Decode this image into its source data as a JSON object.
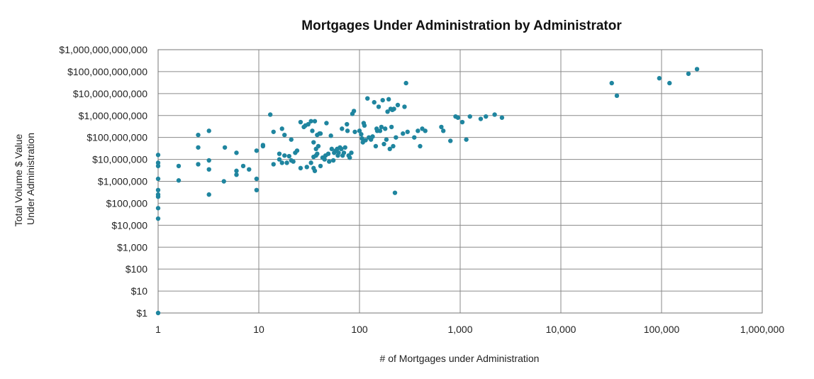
{
  "chart_data": {
    "type": "scatter",
    "title": "Mortgages Under Administration by Administrator",
    "xlabel": "# of Mortgages under Administration",
    "ylabel": [
      "Total Volume $ Value",
      "Under Administration"
    ],
    "x_scale": "log",
    "y_scale": "log",
    "xlim": [
      1,
      1000000
    ],
    "ylim": [
      1,
      1000000000000
    ],
    "x_ticks": [
      1,
      10,
      100,
      1000,
      10000,
      100000,
      1000000
    ],
    "x_tick_labels": [
      "1",
      "10",
      "100",
      "1,000",
      "10,000",
      "100,000",
      "1,000,000"
    ],
    "y_ticks": [
      1,
      10,
      100,
      1000,
      10000,
      100000,
      1000000,
      10000000,
      100000000,
      1000000000,
      10000000000,
      100000000000,
      1000000000000
    ],
    "y_tick_labels": [
      "$1",
      "$10",
      "$100",
      "$1,000",
      "$10,000",
      "$100,000",
      "$1,000,000",
      "$10,000,000",
      "$100,000,000",
      "$1,000,000,000",
      "$10,000,000,000",
      "$100,000,000,000",
      "$1,000,000,000,000"
    ],
    "grid": true,
    "marker_color": "#1f859f",
    "points": [
      [
        1,
        1
      ],
      [
        1,
        20000
      ],
      [
        1,
        60000
      ],
      [
        1,
        200000
      ],
      [
        1,
        250000
      ],
      [
        1,
        400000
      ],
      [
        1,
        1300000
      ],
      [
        1,
        5000000
      ],
      [
        1,
        7000000
      ],
      [
        1,
        16000000
      ],
      [
        1.6,
        1100000
      ],
      [
        1.6,
        5000000
      ],
      [
        2.5,
        6000000
      ],
      [
        2.5,
        35000000
      ],
      [
        2.5,
        130000000
      ],
      [
        3.2,
        250000
      ],
      [
        3.2,
        3500000
      ],
      [
        3.2,
        9000000
      ],
      [
        3.2,
        200000000
      ],
      [
        4.5,
        1000000
      ],
      [
        4.6,
        35000000
      ],
      [
        6,
        2000000
      ],
      [
        6,
        3000000
      ],
      [
        6,
        20000000
      ],
      [
        7,
        5000000
      ],
      [
        8,
        3500000
      ],
      [
        9.5,
        400000
      ],
      [
        9.5,
        1300000
      ],
      [
        9.5,
        25000000
      ],
      [
        11,
        40000000
      ],
      [
        11,
        45000000
      ],
      [
        13,
        1100000000
      ],
      [
        14,
        6000000
      ],
      [
        14,
        180000000
      ],
      [
        16,
        10000000
      ],
      [
        16,
        18000000
      ],
      [
        17,
        7000000
      ],
      [
        17,
        250000000
      ],
      [
        18,
        15000000
      ],
      [
        18,
        130000000
      ],
      [
        19,
        7000000
      ],
      [
        20,
        14000000
      ],
      [
        21,
        9000000
      ],
      [
        21,
        80000000
      ],
      [
        22,
        8000000
      ],
      [
        23,
        20000000
      ],
      [
        24,
        25000000
      ],
      [
        26,
        4000000
      ],
      [
        26,
        500000000
      ],
      [
        28,
        300000000
      ],
      [
        29,
        350000000
      ],
      [
        30,
        4500000
      ],
      [
        31,
        400000000
      ],
      [
        33,
        7000000
      ],
      [
        33,
        550000000
      ],
      [
        34,
        200000000
      ],
      [
        35,
        4000000
      ],
      [
        35,
        60000000
      ],
      [
        35,
        13000000
      ],
      [
        36,
        3000000
      ],
      [
        36,
        550000000
      ],
      [
        37,
        15000000
      ],
      [
        37,
        30000000
      ],
      [
        38,
        18000000
      ],
      [
        38,
        130000000
      ],
      [
        39,
        40000000
      ],
      [
        40,
        150000000
      ],
      [
        41,
        5000000
      ],
      [
        41,
        150000000
      ],
      [
        43,
        12000000
      ],
      [
        45,
        10000000
      ],
      [
        46,
        15000000
      ],
      [
        47,
        450000000
      ],
      [
        49,
        18000000
      ],
      [
        50,
        8000000
      ],
      [
        52,
        120000000
      ],
      [
        53,
        30000000
      ],
      [
        55,
        9000000
      ],
      [
        56,
        20000000
      ],
      [
        58,
        25000000
      ],
      [
        60,
        30000000
      ],
      [
        61,
        15000000
      ],
      [
        62,
        20000000
      ],
      [
        64,
        35000000
      ],
      [
        66,
        30000000
      ],
      [
        67,
        250000000
      ],
      [
        68,
        15000000
      ],
      [
        70,
        20000000
      ],
      [
        72,
        35000000
      ],
      [
        75,
        400000000
      ],
      [
        76,
        200000000
      ],
      [
        78,
        15000000
      ],
      [
        80,
        12000000
      ],
      [
        83,
        20000000
      ],
      [
        85,
        1200000000
      ],
      [
        88,
        1600000000
      ],
      [
        90,
        180000000
      ],
      [
        100,
        200000000
      ],
      [
        104,
        140000000
      ],
      [
        106,
        90000000
      ],
      [
        108,
        60000000
      ],
      [
        110,
        450000000
      ],
      [
        112,
        350000000
      ],
      [
        115,
        75000000
      ],
      [
        120,
        6000000000
      ],
      [
        124,
        100000000
      ],
      [
        130,
        80000000
      ],
      [
        135,
        110000000
      ],
      [
        140,
        4000000000
      ],
      [
        145,
        40000000
      ],
      [
        148,
        250000000
      ],
      [
        150,
        200000000
      ],
      [
        155,
        2500000000
      ],
      [
        160,
        200000000
      ],
      [
        165,
        300000000
      ],
      [
        170,
        5000000000
      ],
      [
        175,
        50000000
      ],
      [
        180,
        250000000
      ],
      [
        185,
        80000000
      ],
      [
        190,
        1500000000
      ],
      [
        195,
        5500000000
      ],
      [
        200,
        30000000
      ],
      [
        204,
        2000000000
      ],
      [
        208,
        300000000
      ],
      [
        212,
        1800000000
      ],
      [
        216,
        40000000
      ],
      [
        220,
        2000000000
      ],
      [
        225,
        300000
      ],
      [
        230,
        100000000
      ],
      [
        240,
        3000000000
      ],
      [
        270,
        150000000
      ],
      [
        280,
        2500000000
      ],
      [
        290,
        30000000000
      ],
      [
        300,
        180000000
      ],
      [
        350,
        100000000
      ],
      [
        380,
        200000000
      ],
      [
        400,
        40000000
      ],
      [
        420,
        250000000
      ],
      [
        450,
        200000000
      ],
      [
        650,
        300000000
      ],
      [
        680,
        200000000
      ],
      [
        800,
        70000000
      ],
      [
        900,
        900000000
      ],
      [
        950,
        800000000
      ],
      [
        1050,
        500000000
      ],
      [
        1150,
        80000000
      ],
      [
        1250,
        900000000
      ],
      [
        1600,
        700000000
      ],
      [
        1800,
        900000000
      ],
      [
        2200,
        1100000000
      ],
      [
        2600,
        800000000
      ],
      [
        32000,
        30000000000
      ],
      [
        36000,
        8000000000
      ],
      [
        95000,
        50000000000
      ],
      [
        120000,
        30000000000
      ],
      [
        185000,
        80000000000
      ],
      [
        225000,
        130000000000
      ]
    ]
  }
}
